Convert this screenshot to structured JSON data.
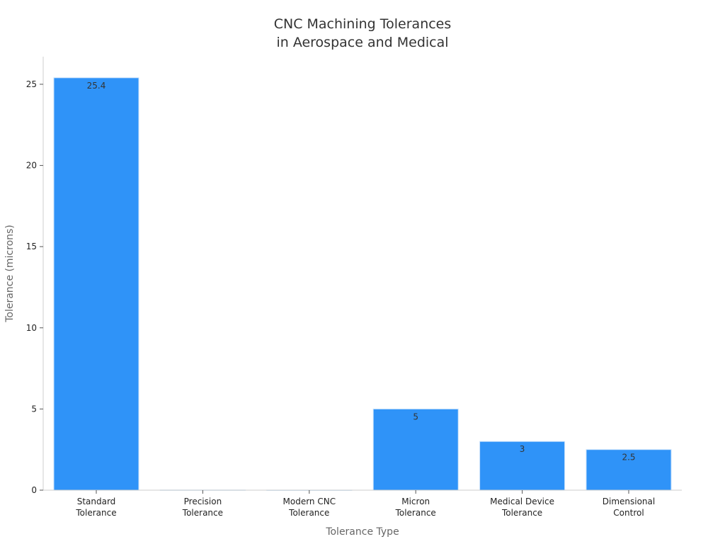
{
  "chart_data": {
    "type": "bar",
    "title": [
      "CNC Machining Tolerances",
      "in Aerospace and Medical"
    ],
    "xlabel": "Tolerance Type",
    "ylabel": "Tolerance (microns)",
    "categories": [
      [
        "Standard",
        "Tolerance"
      ],
      [
        "Precision",
        "Tolerance"
      ],
      [
        "Modern CNC",
        "Tolerance"
      ],
      [
        "Micron",
        "Tolerance"
      ],
      [
        "Medical Device",
        "Tolerance"
      ],
      [
        "Dimensional",
        "Control"
      ]
    ],
    "values": [
      25.4,
      0.01,
      0.005,
      5,
      3,
      2.5
    ],
    "data_labels": [
      "25.4",
      "",
      "",
      "5",
      "3",
      "2.5"
    ],
    "yticks": [
      0,
      5,
      10,
      15,
      20,
      25
    ],
    "ylim": [
      0,
      26.7
    ],
    "grid": false,
    "bar_color": "#2f93f8",
    "bar_edge_color": "#c9e2fb"
  }
}
